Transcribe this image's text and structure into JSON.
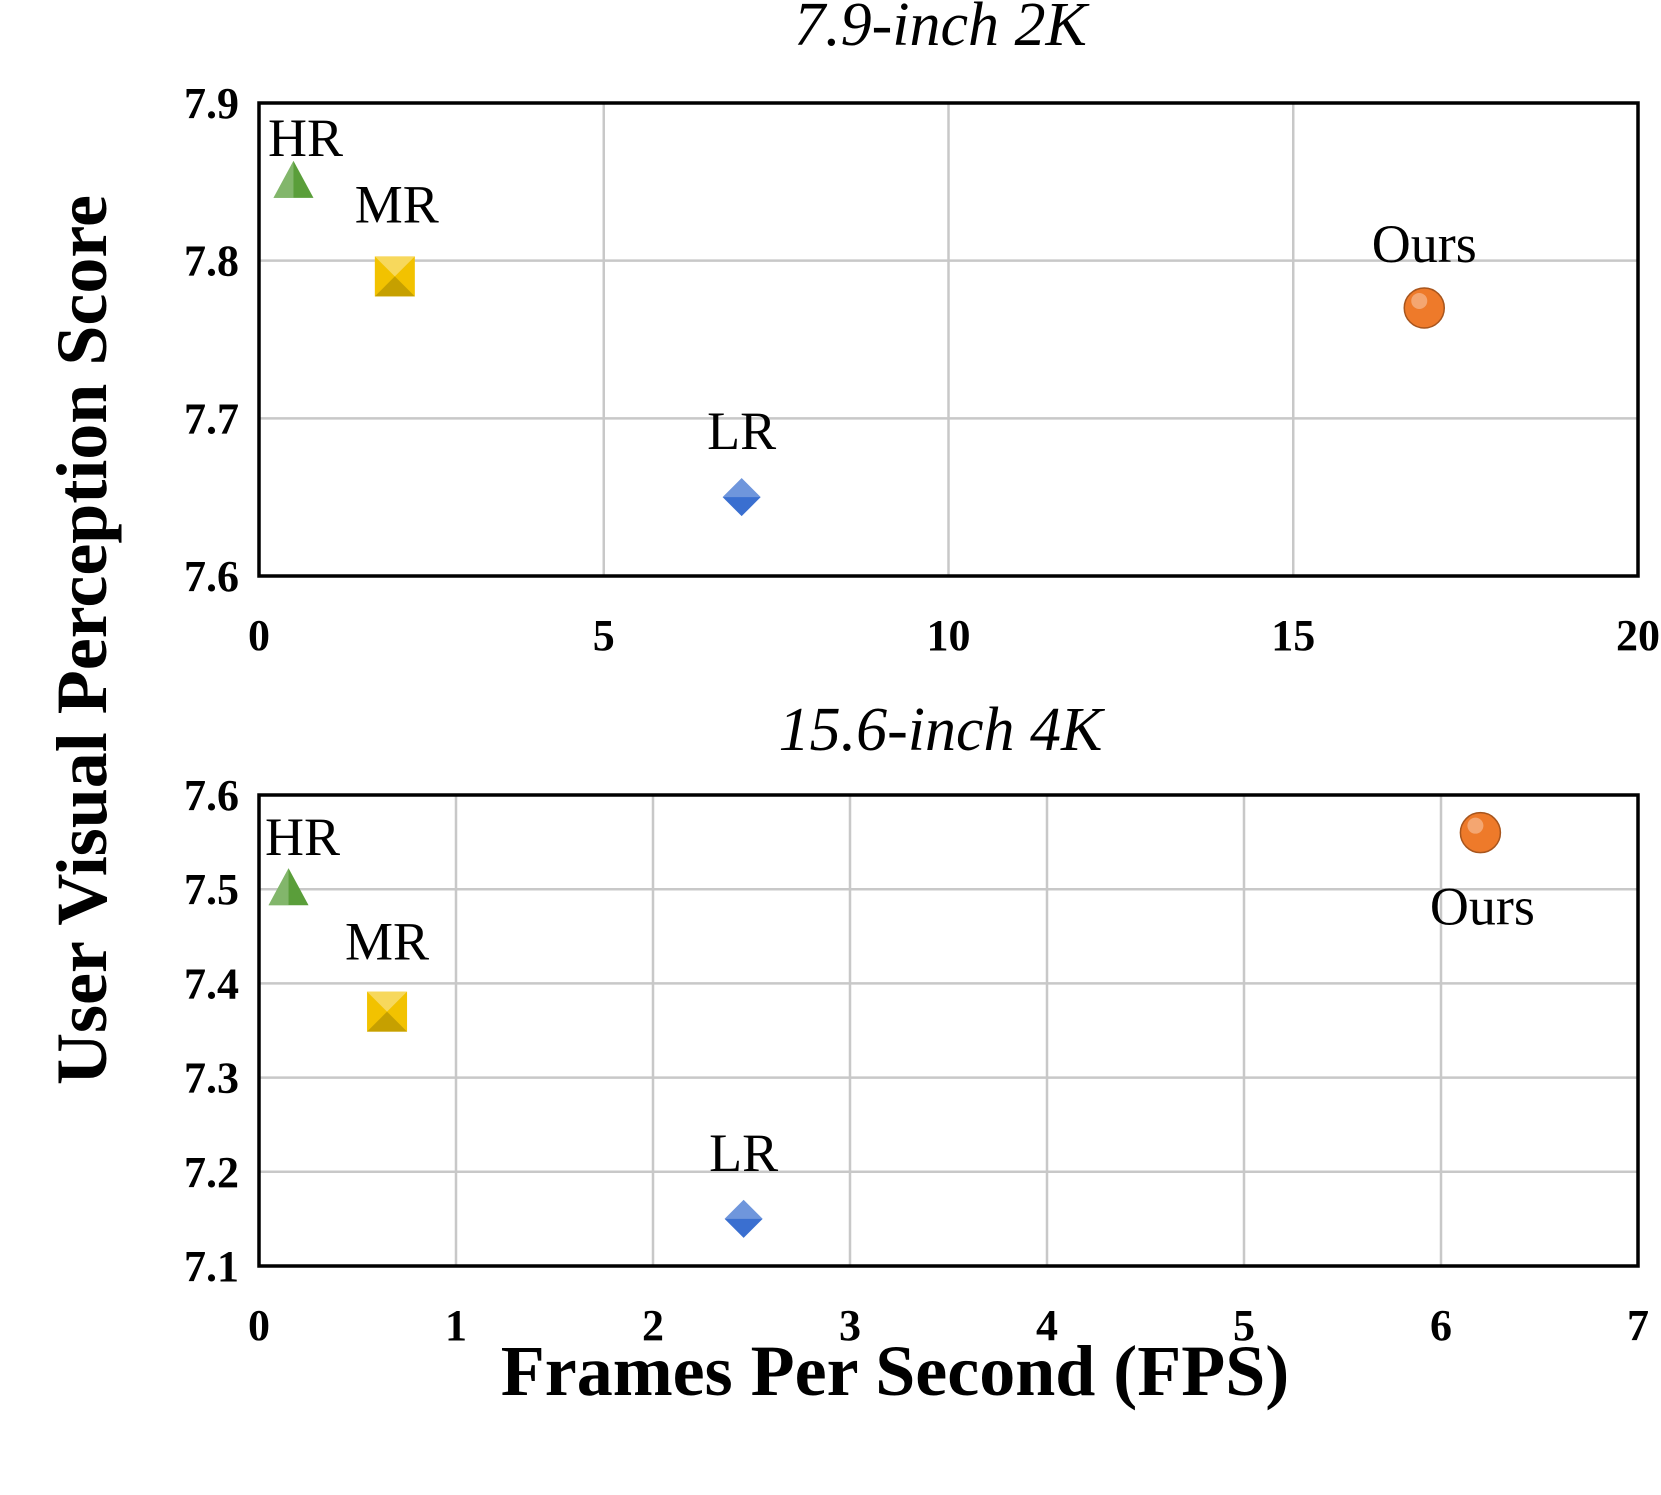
{
  "chart_data": [
    {
      "type": "scatter",
      "title": "7.9-inch 2K",
      "xlabel": "Frames Per Second (FPS)",
      "ylabel": "User Visual Perception Score",
      "xlim": [
        0,
        20
      ],
      "ylim": [
        7.6,
        7.9
      ],
      "x_ticks": [
        0,
        5,
        10,
        15,
        20
      ],
      "x_tick_labels": [
        "0",
        "5",
        "10",
        "15",
        "20"
      ],
      "y_ticks": [
        7.6,
        7.7,
        7.8,
        7.9
      ],
      "y_tick_labels": [
        "7.6",
        "7.7",
        "7.8",
        "7.9"
      ],
      "grid": true,
      "points": [
        {
          "label": "HR",
          "x": 0.5,
          "y": 7.85,
          "marker": "triangle",
          "color": "#5a9e3a"
        },
        {
          "label": "MR",
          "x": 1.97,
          "y": 7.79,
          "marker": "square",
          "color": "#f2c200"
        },
        {
          "label": "LR",
          "x": 7.0,
          "y": 7.65,
          "marker": "diamond",
          "color": "#3a6fd0"
        },
        {
          "label": "Ours",
          "x": 16.9,
          "y": 7.77,
          "marker": "circle",
          "color": "#ee7a2a"
        }
      ]
    },
    {
      "type": "scatter",
      "title": "15.6-inch 4K",
      "xlabel": "Frames Per Second (FPS)",
      "ylabel": "User Visual Perception Score",
      "xlim": [
        0,
        7
      ],
      "ylim": [
        7.1,
        7.6
      ],
      "x_ticks": [
        0,
        1,
        2,
        3,
        4,
        5,
        6,
        7
      ],
      "x_tick_labels": [
        "0",
        "1",
        "2",
        "3",
        "4",
        "5",
        "6",
        "7"
      ],
      "y_ticks": [
        7.1,
        7.2,
        7.3,
        7.4,
        7.5,
        7.6
      ],
      "y_tick_labels": [
        "7.1",
        "7.2",
        "7.3",
        "7.4",
        "7.5",
        "7.6"
      ],
      "grid": true,
      "points": [
        {
          "label": "HR",
          "x": 0.15,
          "y": 7.5,
          "marker": "triangle",
          "color": "#5a9e3a"
        },
        {
          "label": "MR",
          "x": 0.65,
          "y": 7.37,
          "marker": "square",
          "color": "#f2c200"
        },
        {
          "label": "LR",
          "x": 2.46,
          "y": 7.15,
          "marker": "diamond",
          "color": "#3a6fd0"
        },
        {
          "label": "Ours",
          "x": 6.2,
          "y": 7.56,
          "marker": "circle",
          "color": "#ee7a2a"
        }
      ]
    }
  ],
  "shared": {
    "xlabel": "Frames Per Second (FPS)",
    "ylabel": "User Visual Perception Score"
  }
}
